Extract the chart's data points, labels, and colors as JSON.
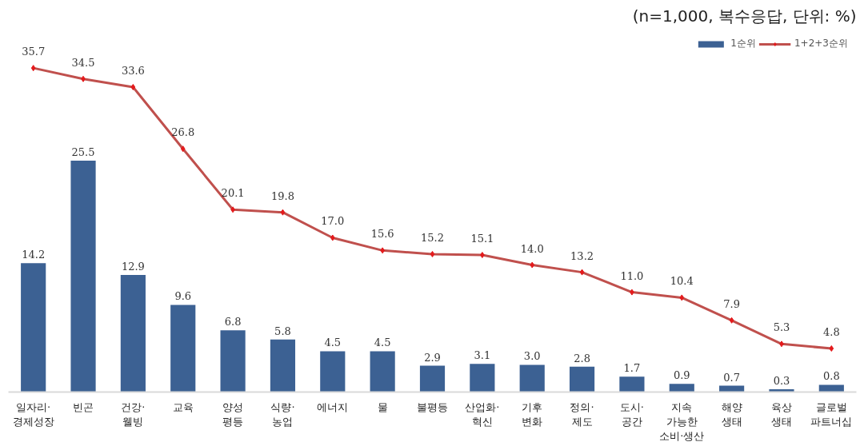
{
  "chart_data": {
    "type": "bar",
    "annotations": [
      "(n=1,000, 복수응답, 단위: %)"
    ],
    "categories": [
      "일자리·\n경제성장",
      "빈곤",
      "건강·\n웰빙",
      "교육",
      "양성\n평등",
      "식량·\n농업",
      "에너지",
      "물",
      "불평등",
      "산업화·\n혁신",
      "기후\n변화",
      "정의·\n제도",
      "도시·\n공간",
      "지속\n가능한\n소비·생산",
      "해양\n생태",
      "육상\n생태",
      "글로벌\n파트너십"
    ],
    "series": [
      {
        "name": "1순위",
        "color": "#3c6193",
        "values": [
          14.2,
          25.5,
          12.9,
          9.6,
          6.8,
          5.8,
          4.5,
          4.5,
          2.9,
          3.1,
          3.0,
          2.8,
          1.7,
          0.9,
          0.7,
          0.3,
          0.8
        ],
        "value_labels": [
          "14.2",
          "25.5",
          "12.9",
          "9.6",
          "6.8",
          "5.8",
          "4.5",
          "4.5",
          "2.9",
          "3.1",
          "3.0",
          "2.8",
          "1.7",
          "0.9",
          "0.7",
          "0.3",
          "0.8"
        ]
      },
      {
        "name": "1+2+3순위",
        "type": "line",
        "color": "#c0504d",
        "marker": "diamond",
        "values": [
          35.7,
          34.5,
          33.6,
          26.8,
          20.1,
          19.8,
          17.0,
          15.6,
          15.2,
          15.1,
          14.0,
          13.2,
          11.0,
          10.4,
          7.9,
          5.3,
          4.8
        ],
        "value_labels": [
          "35.7",
          "34.5",
          "33.6",
          "26.8",
          "20.1",
          "19.8",
          "17.0",
          "15.6",
          "15.2",
          "15.1",
          "14.0",
          "13.2",
          "11.0",
          "10.4",
          "7.9",
          "5.3",
          "4.8"
        ]
      }
    ],
    "legend": "top right",
    "grid": false,
    "tick_labels": "x"
  }
}
